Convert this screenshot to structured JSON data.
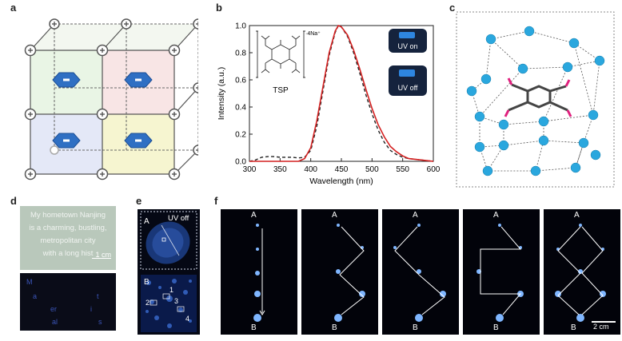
{
  "panel_labels": {
    "a": "a",
    "b": "b",
    "c": "c",
    "d": "d",
    "e": "e",
    "f": "f"
  },
  "panel_b": {
    "chart_data": {
      "type": "line",
      "xlabel": "Wavelength (nm)",
      "ylabel": "Intensity (a.u.)",
      "xlim": [
        300,
        600
      ],
      "ylim": [
        0,
        1.0
      ],
      "xticks": [
        "300",
        "350",
        "400",
        "450",
        "500",
        "550",
        "600"
      ],
      "yticks": [
        "0.0",
        "0.2",
        "0.4",
        "0.6",
        "0.8",
        "1.0"
      ],
      "series": [
        {
          "name": "UV on",
          "style": "solid",
          "color": "#d42020",
          "x": [
            300,
            380,
            390,
            400,
            410,
            420,
            430,
            440,
            445,
            450,
            460,
            470,
            480,
            490,
            500,
            510,
            520,
            530,
            540,
            550,
            560,
            580,
            600
          ],
          "values": [
            0.0,
            0.0,
            0.02,
            0.1,
            0.3,
            0.55,
            0.8,
            0.96,
            1.0,
            0.99,
            0.93,
            0.82,
            0.68,
            0.53,
            0.39,
            0.27,
            0.18,
            0.11,
            0.07,
            0.04,
            0.02,
            0.01,
            0.0
          ]
        },
        {
          "name": "UV off",
          "style": "dashed",
          "color": "#222222",
          "x": [
            300,
            310,
            320,
            330,
            340,
            350,
            360,
            370,
            380,
            390,
            400,
            410,
            420,
            430,
            440,
            445,
            450,
            460,
            470,
            480,
            490,
            500,
            510,
            520,
            530,
            540,
            550,
            560,
            580,
            600
          ],
          "values": [
            0.0,
            0.01,
            0.03,
            0.035,
            0.035,
            0.03,
            0.03,
            0.03,
            0.025,
            0.03,
            0.08,
            0.26,
            0.52,
            0.78,
            0.95,
            1.0,
            0.99,
            0.92,
            0.8,
            0.65,
            0.49,
            0.35,
            0.23,
            0.14,
            0.08,
            0.05,
            0.03,
            0.02,
            0.01,
            0.0
          ]
        }
      ]
    },
    "molecule_label": "TSP",
    "counterion": "·4Na⁺",
    "legend_on": "UV on",
    "legend_off": "UV off"
  },
  "panel_d": {
    "lines": [
      "My hometown Nanjing",
      "is a charming, bustling,",
      "metropolitan city",
      "with a long hist"
    ],
    "scale": "1 cm",
    "letters": [
      "M",
      "a",
      "t",
      "er",
      "i",
      "al",
      "s"
    ]
  },
  "panel_e": {
    "label_a": "A",
    "uv_text": "UV off",
    "label_b": "B",
    "numbers": [
      "1",
      "2",
      "3",
      "4"
    ]
  },
  "panel_f": {
    "labels_top": [
      "A",
      "A",
      "A",
      "A",
      "A"
    ],
    "labels_bottom": [
      "B",
      "B",
      "B",
      "B",
      "B"
    ],
    "scale": "2 cm"
  },
  "colors": {
    "uv_on": "#d42020",
    "uv_off": "#222222",
    "crystal": "#2aa7de",
    "dark": "#02030a"
  }
}
